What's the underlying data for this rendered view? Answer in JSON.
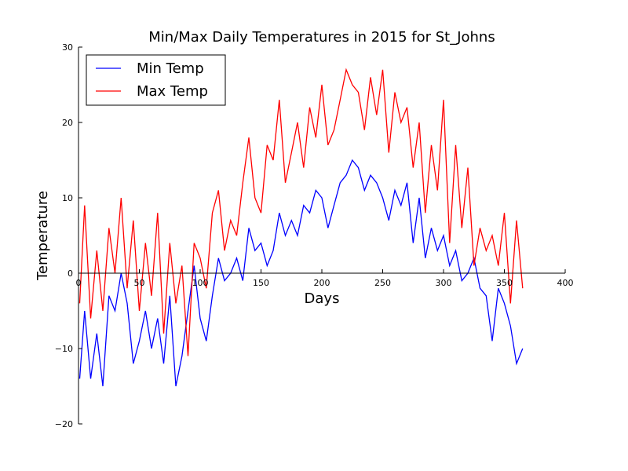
{
  "chart_data": {
    "type": "line",
    "title": "Min/Max Daily Temperatures in 2015 for St_Johns",
    "xlabel": "Days",
    "ylabel": "Temperature",
    "xlim": [
      0,
      400
    ],
    "ylim": [
      -20,
      30
    ],
    "xticks": [
      "0",
      "50",
      "100",
      "150",
      "200",
      "250",
      "300",
      "350",
      "400"
    ],
    "yticks": [
      "-20",
      "-10",
      "0",
      "10",
      "20",
      "30"
    ],
    "grid": false,
    "legend_position": "top-left",
    "series": [
      {
        "name": "Min Temp",
        "color": "#0000ff",
        "x": [
          1,
          5,
          10,
          15,
          20,
          25,
          30,
          35,
          40,
          45,
          50,
          55,
          60,
          65,
          70,
          75,
          80,
          85,
          90,
          95,
          100,
          105,
          110,
          115,
          120,
          125,
          130,
          135,
          140,
          145,
          150,
          155,
          160,
          165,
          170,
          175,
          180,
          185,
          190,
          195,
          200,
          205,
          210,
          215,
          220,
          225,
          230,
          235,
          240,
          245,
          250,
          255,
          260,
          265,
          270,
          275,
          280,
          285,
          290,
          295,
          300,
          305,
          310,
          315,
          320,
          325,
          330,
          335,
          340,
          345,
          350,
          355,
          360,
          365
        ],
        "y": [
          -14,
          -5,
          -14,
          -8,
          -15,
          -3,
          -5,
          0,
          -4,
          -12,
          -9,
          -5,
          -10,
          -6,
          -12,
          -3,
          -15,
          -11,
          -5,
          1,
          -6,
          -9,
          -3,
          2,
          -1,
          0,
          2,
          -1,
          6,
          3,
          4,
          1,
          3,
          8,
          5,
          7,
          5,
          9,
          8,
          11,
          10,
          6,
          9,
          12,
          13,
          15,
          14,
          11,
          13,
          12,
          10,
          7,
          11,
          9,
          12,
          4,
          10,
          2,
          6,
          3,
          5,
          1,
          3,
          -1,
          0,
          2,
          -2,
          -3,
          -9,
          -2,
          -4,
          -7,
          -12,
          -10
        ]
      },
      {
        "name": "Max Temp",
        "color": "#ff0000",
        "x": [
          1,
          5,
          10,
          15,
          20,
          25,
          30,
          35,
          40,
          45,
          50,
          55,
          60,
          65,
          70,
          75,
          80,
          85,
          90,
          95,
          100,
          105,
          110,
          115,
          120,
          125,
          130,
          135,
          140,
          145,
          150,
          155,
          160,
          165,
          170,
          175,
          180,
          185,
          190,
          195,
          200,
          205,
          210,
          215,
          220,
          225,
          230,
          235,
          240,
          245,
          250,
          255,
          260,
          265,
          270,
          275,
          280,
          285,
          290,
          295,
          300,
          305,
          310,
          315,
          320,
          325,
          330,
          335,
          340,
          345,
          350,
          355,
          360,
          365
        ],
        "y": [
          -4,
          9,
          -6,
          3,
          -5,
          6,
          0,
          10,
          -2,
          7,
          -5,
          4,
          -3,
          8,
          -8,
          4,
          -4,
          1,
          -11,
          4,
          2,
          -2,
          8,
          11,
          3,
          7,
          5,
          12,
          18,
          10,
          8,
          17,
          15,
          23,
          12,
          16,
          20,
          14,
          22,
          18,
          25,
          17,
          19,
          23,
          27,
          25,
          24,
          19,
          26,
          21,
          27,
          16,
          24,
          20,
          22,
          14,
          20,
          8,
          17,
          11,
          23,
          4,
          17,
          6,
          14,
          1,
          6,
          3,
          5,
          1,
          8,
          -4,
          7,
          -2
        ]
      }
    ]
  }
}
